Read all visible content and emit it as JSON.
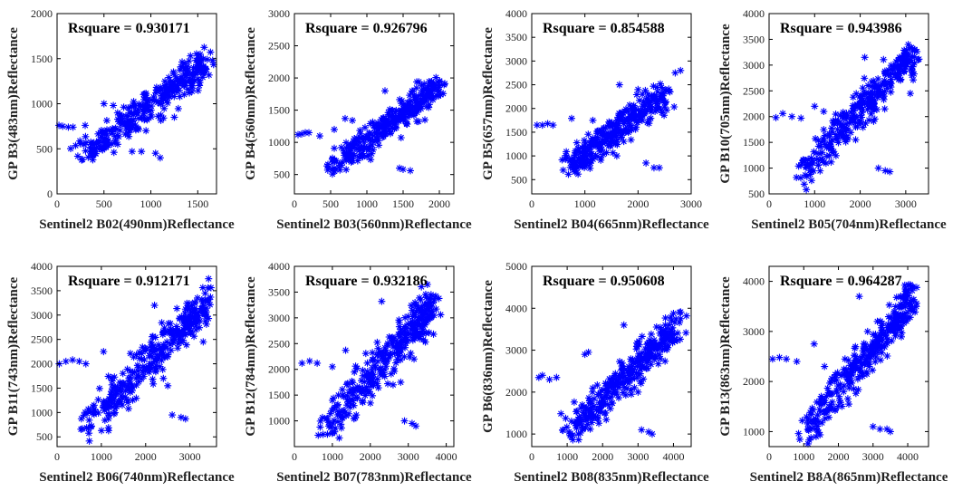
{
  "chart_data": [
    {
      "type": "scatter",
      "rsq_label": "Rsquare = 0.930171",
      "xlabel": "Sentinel2 B02(490nm)Reflectance",
      "ylabel": "GP B3(483nm)Reflectance",
      "xlim": [
        0,
        1700
      ],
      "ylim": [
        0,
        2000
      ],
      "xticks": [
        0,
        500,
        1000,
        1500
      ],
      "yticks": [
        0,
        500,
        1000,
        1500,
        2000
      ],
      "fit": [
        [
          250,
          420
        ],
        [
          1600,
          1440
        ]
      ],
      "spread": 90,
      "outliers": [
        [
          20,
          760
        ],
        [
          60,
          750
        ],
        [
          120,
          740
        ],
        [
          170,
          740
        ],
        [
          300,
          760
        ],
        [
          500,
          1000
        ],
        [
          600,
          980
        ],
        [
          800,
          470
        ],
        [
          900,
          470
        ],
        [
          1050,
          450
        ],
        [
          1100,
          400
        ],
        [
          1250,
          850
        ]
      ]
    },
    {
      "type": "scatter",
      "rsq_label": "Rsquare = 0.926796",
      "xlabel": "Sentinel2 B03(560nm)Reflectance",
      "ylabel": "GP B4(560nm)Reflectance",
      "xlim": [
        0,
        2200
      ],
      "ylim": [
        200,
        3000
      ],
      "xticks": [
        0,
        500,
        1000,
        1500,
        2000
      ],
      "yticks": [
        500,
        1000,
        1500,
        2000,
        2500,
        3000
      ],
      "fit": [
        [
          500,
          560
        ],
        [
          2000,
          1900
        ]
      ],
      "spread": 110,
      "outliers": [
        [
          50,
          1120
        ],
        [
          100,
          1130
        ],
        [
          150,
          1150
        ],
        [
          200,
          1150
        ],
        [
          350,
          1100
        ],
        [
          550,
          1200
        ],
        [
          700,
          1370
        ],
        [
          800,
          1340
        ],
        [
          1000,
          780
        ],
        [
          1250,
          1800
        ],
        [
          1450,
          600
        ],
        [
          1500,
          580
        ],
        [
          1600,
          560
        ],
        [
          1800,
          1350
        ]
      ]
    },
    {
      "type": "scatter",
      "rsq_label": "Rsquare = 0.854588",
      "xlabel": "Sentinel2 B04(665nm)Reflectance",
      "ylabel": "GP B5(657nm)Reflectance",
      "xlim": [
        0,
        3000
      ],
      "ylim": [
        200,
        4000
      ],
      "xticks": [
        0,
        1000,
        2000,
        3000
      ],
      "yticks": [
        500,
        1000,
        1500,
        2000,
        2500,
        3000,
        3500,
        4000
      ],
      "fit": [
        [
          650,
          760
        ],
        [
          2500,
          2300
        ]
      ],
      "spread": 160,
      "outliers": [
        [
          100,
          1650
        ],
        [
          200,
          1650
        ],
        [
          300,
          1680
        ],
        [
          400,
          1650
        ],
        [
          750,
          1790
        ],
        [
          1150,
          1750
        ],
        [
          1300,
          960
        ],
        [
          1600,
          1000
        ],
        [
          1650,
          2500
        ],
        [
          2000,
          2400
        ],
        [
          2150,
          850
        ],
        [
          2300,
          750
        ],
        [
          2400,
          750
        ],
        [
          2600,
          2350
        ],
        [
          2700,
          2750
        ],
        [
          2800,
          2800
        ]
      ]
    },
    {
      "type": "scatter",
      "rsq_label": "Rsquare = 0.943986",
      "xlabel": "Sentinel2 B05(704nm)Reflectance",
      "ylabel": "GP B10(705nm)Reflectance",
      "xlim": [
        0,
        3500
      ],
      "ylim": [
        500,
        4000
      ],
      "xticks": [
        0,
        1000,
        2000,
        3000
      ],
      "yticks": [
        500,
        1000,
        1500,
        2000,
        2500,
        3000,
        3500,
        4000
      ],
      "fit": [
        [
          700,
          900
        ],
        [
          3200,
          3250
        ]
      ],
      "spread": 180,
      "outliers": [
        [
          150,
          1980
        ],
        [
          300,
          2060
        ],
        [
          500,
          2000
        ],
        [
          700,
          1970
        ],
        [
          1000,
          2200
        ],
        [
          1200,
          2100
        ],
        [
          1700,
          1600
        ],
        [
          1900,
          1550
        ],
        [
          2100,
          3150
        ],
        [
          2400,
          1000
        ],
        [
          2550,
          950
        ],
        [
          2650,
          930
        ],
        [
          3100,
          2450
        ],
        [
          3200,
          3300
        ]
      ]
    },
    {
      "type": "scatter",
      "rsq_label": "Rsquare = 0.912171",
      "xlabel": "Sentinel2 B06(740nm)Reflectance",
      "ylabel": "GP B11(743nm)Reflectance",
      "xlim": [
        0,
        3600
      ],
      "ylim": [
        300,
        4000
      ],
      "xticks": [
        0,
        1000,
        2000,
        3000
      ],
      "yticks": [
        500,
        1000,
        1500,
        2000,
        2500,
        3000,
        3500,
        4000
      ],
      "fit": [
        [
          700,
          800
        ],
        [
          3400,
          3300
        ]
      ],
      "spread": 210,
      "outliers": [
        [
          50,
          2000
        ],
        [
          200,
          2050
        ],
        [
          350,
          2080
        ],
        [
          500,
          2050
        ],
        [
          650,
          2000
        ],
        [
          1050,
          2250
        ],
        [
          1600,
          1250
        ],
        [
          2200,
          3200
        ],
        [
          2400,
          1700
        ],
        [
          2500,
          1550
        ],
        [
          2600,
          950
        ],
        [
          2800,
          900
        ],
        [
          2900,
          870
        ],
        [
          3300,
          2450
        ],
        [
          3400,
          3300
        ]
      ]
    },
    {
      "type": "scatter",
      "rsq_label": "Rsquare = 0.932186",
      "xlabel": "Sentinel2 B07(783nm)Reflectance",
      "ylabel": "GP B12(784nm)Reflectance",
      "xlim": [
        0,
        4200
      ],
      "ylim": [
        500,
        4000
      ],
      "xticks": [
        0,
        1000,
        2000,
        3000,
        4000
      ],
      "yticks": [
        1000,
        1500,
        2000,
        2500,
        3000,
        3500,
        4000
      ],
      "fit": [
        [
          800,
          900
        ],
        [
          3700,
          3300
        ]
      ],
      "spread": 210,
      "outliers": [
        [
          200,
          2120
        ],
        [
          400,
          2160
        ],
        [
          600,
          2120
        ],
        [
          1000,
          2050
        ],
        [
          1350,
          2370
        ],
        [
          2300,
          3320
        ],
        [
          2600,
          1700
        ],
        [
          2800,
          1750
        ],
        [
          2900,
          1000
        ],
        [
          3100,
          950
        ],
        [
          3200,
          900
        ],
        [
          3600,
          3450
        ],
        [
          3700,
          3400
        ]
      ]
    },
    {
      "type": "scatter",
      "rsq_label": "Rsquare = 0.950608",
      "xlabel": "Sentinel2 B08(835nm)Reflectance",
      "ylabel": "GP B6(836nm)Reflectance",
      "xlim": [
        0,
        4500
      ],
      "ylim": [
        700,
        5000
      ],
      "xticks": [
        0,
        1000,
        2000,
        3000,
        4000
      ],
      "yticks": [
        1000,
        2000,
        3000,
        4000,
        5000
      ],
      "fit": [
        [
          1000,
          1050
        ],
        [
          4200,
          3650
        ]
      ],
      "spread": 210,
      "outliers": [
        [
          200,
          2350
        ],
        [
          300,
          2400
        ],
        [
          500,
          2300
        ],
        [
          700,
          2350
        ],
        [
          1500,
          2900
        ],
        [
          1600,
          2950
        ],
        [
          2600,
          3600
        ],
        [
          2800,
          2050
        ],
        [
          3000,
          2000
        ],
        [
          3100,
          1100
        ],
        [
          3300,
          1050
        ],
        [
          3400,
          1000
        ],
        [
          3700,
          3450
        ],
        [
          4200,
          3750
        ]
      ]
    },
    {
      "type": "scatter",
      "rsq_label": "Rsquare = 0.964287",
      "xlabel": "Sentinel2 B8A(865nm)Reflectance",
      "ylabel": "GP B13(863nm)Reflectance",
      "xlim": [
        0,
        4600
      ],
      "ylim": [
        700,
        4300
      ],
      "xticks": [
        0,
        1000,
        2000,
        3000,
        4000
      ],
      "yticks": [
        1000,
        2000,
        3000,
        4000
      ],
      "fit": [
        [
          1000,
          950
        ],
        [
          4200,
          3700
        ]
      ],
      "spread": 190,
      "outliers": [
        [
          100,
          2450
        ],
        [
          300,
          2480
        ],
        [
          500,
          2450
        ],
        [
          800,
          2400
        ],
        [
          1300,
          2750
        ],
        [
          1600,
          2300
        ],
        [
          2300,
          1550
        ],
        [
          2600,
          3700
        ],
        [
          3000,
          1100
        ],
        [
          3200,
          1050
        ],
        [
          3400,
          1050
        ],
        [
          3500,
          1000
        ],
        [
          3800,
          3700
        ],
        [
          4100,
          3900
        ]
      ]
    }
  ]
}
